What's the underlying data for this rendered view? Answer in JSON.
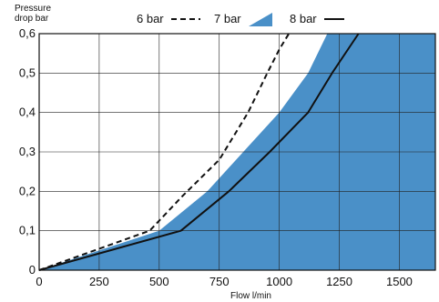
{
  "chart_data": {
    "type": "line",
    "ylabel_lines": [
      "Pressure",
      "drop bar"
    ],
    "xlabel": "Flow l/min",
    "xlim": [
      0,
      1650
    ],
    "ylim": [
      0,
      0.6
    ],
    "x_ticks": [
      0,
      250,
      500,
      750,
      1000,
      1250,
      1500
    ],
    "x_tick_labels": [
      "0",
      "250",
      "500",
      "750",
      "1000",
      "1250",
      "1500"
    ],
    "y_ticks": [
      0,
      0.1,
      0.2,
      0.3,
      0.4,
      0.5,
      0.6
    ],
    "y_tick_labels": [
      "0",
      "0,1",
      "0,2",
      "0,3",
      "0,4",
      "0,5",
      "0,6"
    ],
    "grid": true,
    "legend_position": "top",
    "series": [
      {
        "name": "6 bar",
        "style": "dashed-line",
        "color": "#111111",
        "points": [
          [
            0,
            0
          ],
          [
            460,
            0.1
          ],
          [
            600,
            0.19
          ],
          [
            750,
            0.28
          ],
          [
            870,
            0.4
          ],
          [
            950,
            0.5
          ],
          [
            1000,
            0.56
          ],
          [
            1040,
            0.6
          ]
        ]
      },
      {
        "name": "7 bar",
        "style": "filled-area",
        "color": "#4a90c8",
        "points": [
          [
            0,
            0
          ],
          [
            500,
            0.1
          ],
          [
            700,
            0.2
          ],
          [
            850,
            0.3
          ],
          [
            1000,
            0.4
          ],
          [
            1120,
            0.5
          ],
          [
            1200,
            0.6
          ],
          [
            1650,
            0.6
          ]
        ]
      },
      {
        "name": "8 bar",
        "style": "solid-line",
        "color": "#111111",
        "points": [
          [
            0,
            0
          ],
          [
            590,
            0.1
          ],
          [
            790,
            0.2
          ],
          [
            960,
            0.3
          ],
          [
            1120,
            0.4
          ],
          [
            1220,
            0.5
          ],
          [
            1330,
            0.6
          ]
        ]
      }
    ]
  }
}
